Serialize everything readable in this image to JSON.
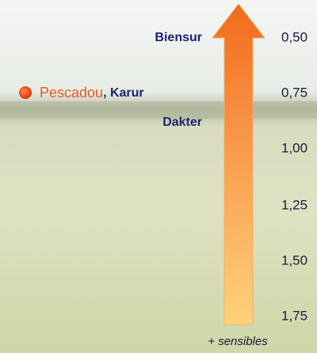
{
  "scale": {
    "labels": [
      "0,50",
      "0,75",
      "1,00",
      "1,25",
      "1,50",
      "1,75"
    ]
  },
  "varieties": {
    "top": "Biensur",
    "marked": "Pescadou",
    "marked_rest": ", Karur",
    "middle": "Dakter"
  },
  "footer": "+ sensibles"
}
